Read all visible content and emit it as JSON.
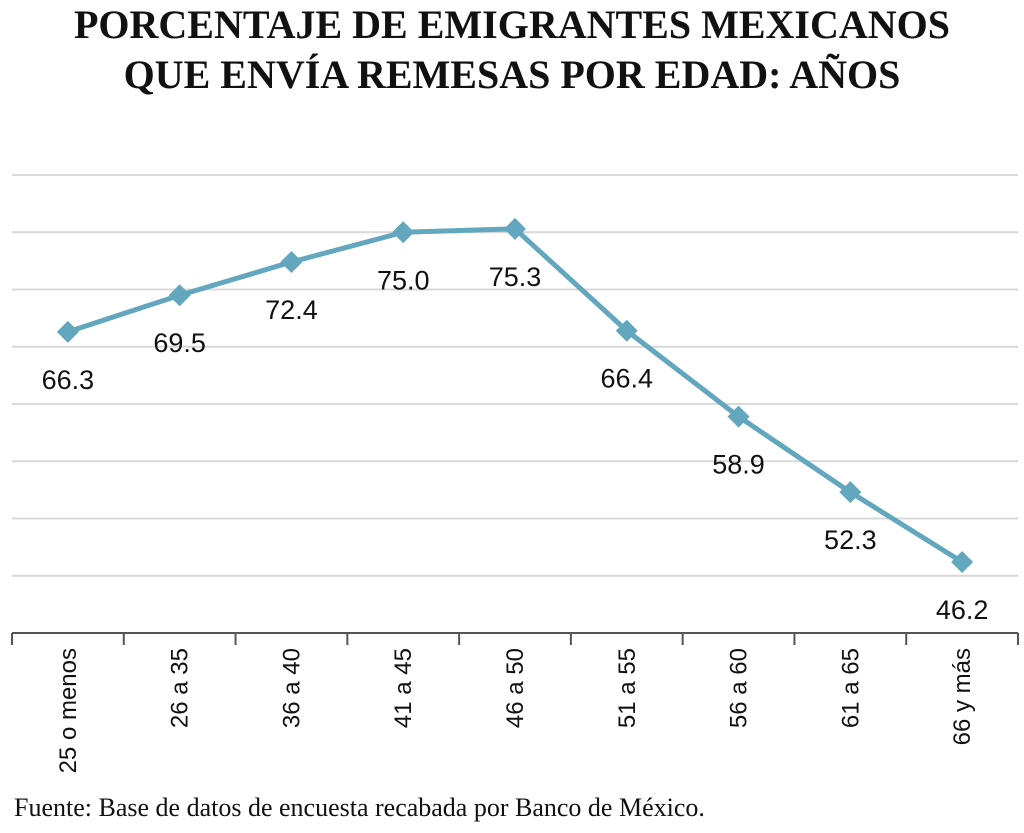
{
  "chart_data": {
    "type": "line",
    "title_lines": [
      "PORCENTAJE DE EMIGRANTES MEXICANOS",
      "QUE ENVÍA REMESAS POR EDAD: AÑOS"
    ],
    "categories": [
      "25 o menos",
      "26 a 35",
      "36 a 40",
      "41 a 45",
      "46 a 50",
      "51 a 55",
      "56 a 60",
      "61 a 65",
      "66 y más"
    ],
    "values": [
      66.3,
      69.5,
      72.4,
      75.0,
      75.3,
      66.4,
      58.9,
      52.3,
      46.2
    ],
    "value_labels": [
      "66.3",
      "69.5",
      "72.4",
      "75.0",
      "75.3",
      "66.4",
      "58.9",
      "52.3",
      "46.2"
    ],
    "color": "#62a7bd",
    "ylim": [
      40,
      80
    ],
    "yticks": [
      40,
      45,
      50,
      55,
      60,
      65,
      70,
      75,
      80
    ],
    "grid": true,
    "source": "Fuente: Base de datos de encuesta recabada por Banco de México."
  }
}
